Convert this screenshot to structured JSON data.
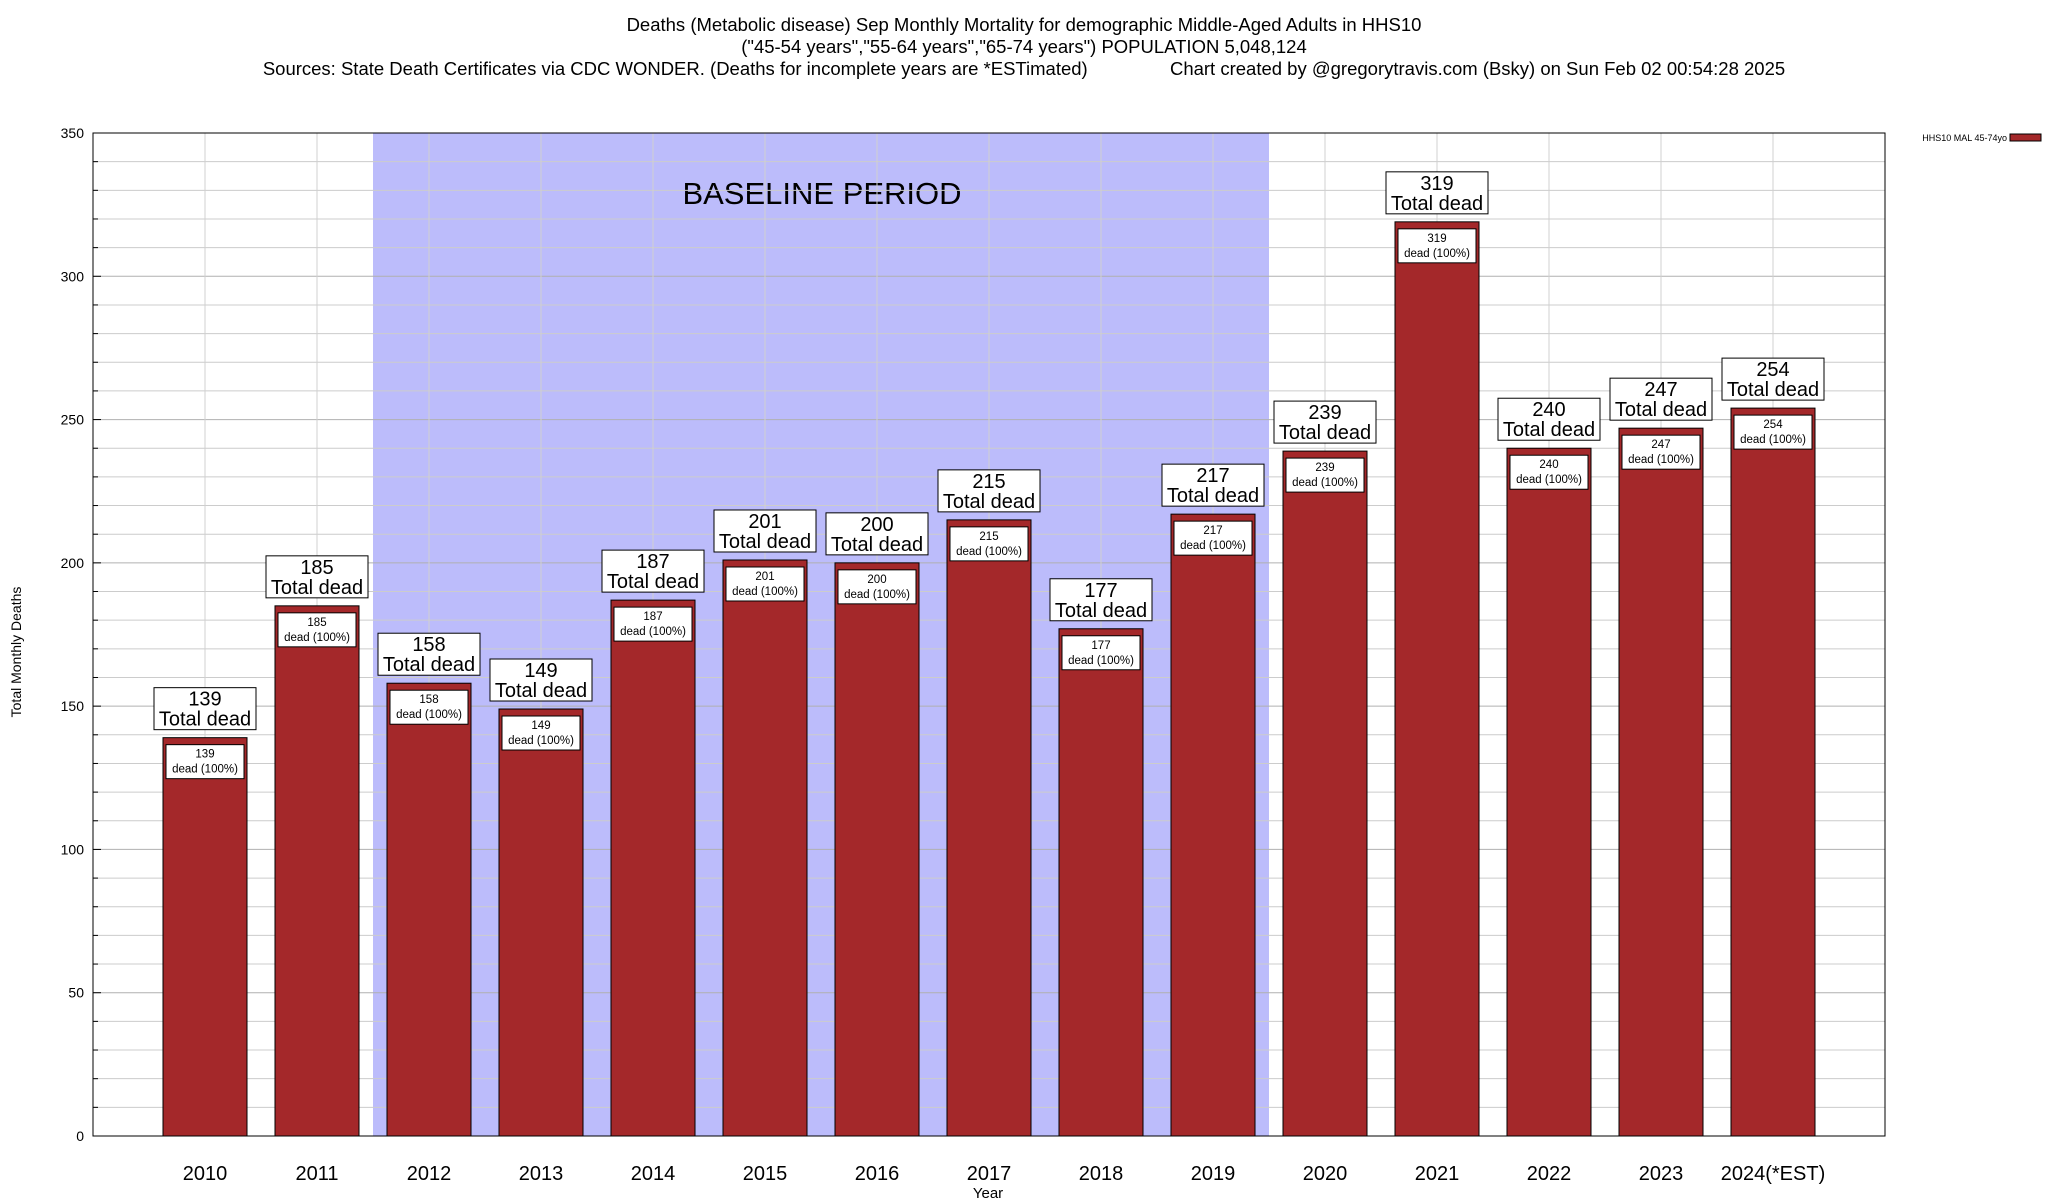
{
  "title": {
    "line1": "Deaths (Metabolic disease) Sep Monthly Mortality for demographic Middle-Aged Adults in HHS10",
    "line2": "(\"45-54 years\",\"55-64 years\",\"65-74 years\") POPULATION 5,048,124",
    "line3": "Sources: State Death Certificates via CDC WONDER. (Deaths for incomplete years are *ESTimated)                Chart created by @gregorytravis.com (Bsky) on Sun Feb 02 00:54:28 2025"
  },
  "chart_data": {
    "type": "bar",
    "xlabel": "Year",
    "ylabel": "Total Monthly Deaths",
    "ylim": [
      0,
      350
    ],
    "yticks": [
      0,
      50,
      100,
      150,
      200,
      250,
      300,
      350
    ],
    "categories": [
      "2010",
      "2011",
      "2012",
      "2013",
      "2014",
      "2015",
      "2016",
      "2017",
      "2018",
      "2019",
      "2020",
      "2021",
      "2022",
      "2023",
      "2024(*EST)"
    ],
    "series": [
      {
        "name": "HHS10 MAL 45-74yo",
        "color": "#a4282a",
        "values": [
          139,
          185,
          158,
          149,
          187,
          201,
          200,
          215,
          177,
          217,
          239,
          319,
          240,
          247,
          254
        ]
      }
    ],
    "top_label_suffix": "Total dead",
    "inner_label_suffix": "dead (100%)",
    "baseline": {
      "label": "BASELINE PERIOD",
      "start": "2012",
      "end": "2019",
      "color": "#bcbcfb"
    },
    "legend_position": "top-right",
    "grid": true
  }
}
